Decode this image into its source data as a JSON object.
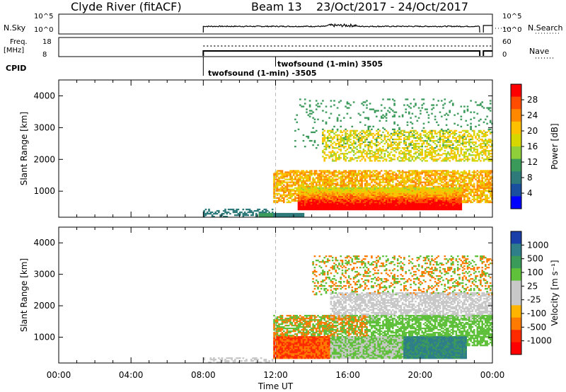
{
  "header": {
    "station": "Clyde River (fitACF)",
    "beam": "Beam 13",
    "dates": "23/Oct/2017 - 24/Oct/2017"
  },
  "top_panels": {
    "nsky_label": "N.Sky",
    "nsky_ticks": [
      "10^5",
      "10^0"
    ],
    "nsearch_label": "N.Search",
    "nsearch_ticks": [
      "10^5",
      "10^0"
    ],
    "freq_label_line1": "Freq.",
    "freq_label_line2": "[MHz]",
    "freq_ticks": [
      "18",
      "8"
    ],
    "nave_label": "Nave",
    "nave_ticks": [
      "60",
      "0"
    ],
    "cpid_label": "CPID",
    "cpid_entries": [
      "twofsound (1-min) 3505",
      "twofsound (1-min) -3505"
    ]
  },
  "chart_data": [
    {
      "type": "heatmap",
      "name": "power",
      "xlabel": "",
      "ylabel": "Slant Range [km]",
      "x_range_hours": [
        0,
        24
      ],
      "ylim": [
        180,
        4500
      ],
      "yticks": [
        "1000",
        "2000",
        "3000",
        "4000"
      ],
      "colorbar_label": "Power [dB]",
      "colorbar_ticks": [
        "28",
        "24",
        "20",
        "16",
        "12",
        "8",
        "4"
      ],
      "colorbar_colors": [
        "#ff0000",
        "#ff4c00",
        "#ff8800",
        "#ffc000",
        "#d7d700",
        "#8fd03a",
        "#3a9a5a",
        "#2e7a7a",
        "#1a4fa0",
        "#0000ff"
      ]
    },
    {
      "type": "heatmap",
      "name": "velocity",
      "xlabel": "Time UT",
      "ylabel": "Slant Range [km]",
      "x_range_hours": [
        0,
        24
      ],
      "xticks": [
        "00:00",
        "04:00",
        "08:00",
        "12:00",
        "16:00",
        "20:00",
        "00:00"
      ],
      "ylim": [
        180,
        4500
      ],
      "yticks": [
        "1000",
        "2000",
        "3000",
        "4000"
      ],
      "colorbar_label": "Velocity [m s⁻¹]",
      "colorbar_ticks": [
        "1000",
        "500",
        "100",
        "25",
        "-25",
        "-100",
        "-500",
        "-1000"
      ],
      "colorbar_colors": [
        "#1b3fa8",
        "#2f7f8a",
        "#3a9a5a",
        "#5fc03a",
        "#c8c8c8",
        "#c8c8c8",
        "#ffb400",
        "#ff7a00",
        "#ff2a00",
        "#ff0000"
      ]
    }
  ]
}
